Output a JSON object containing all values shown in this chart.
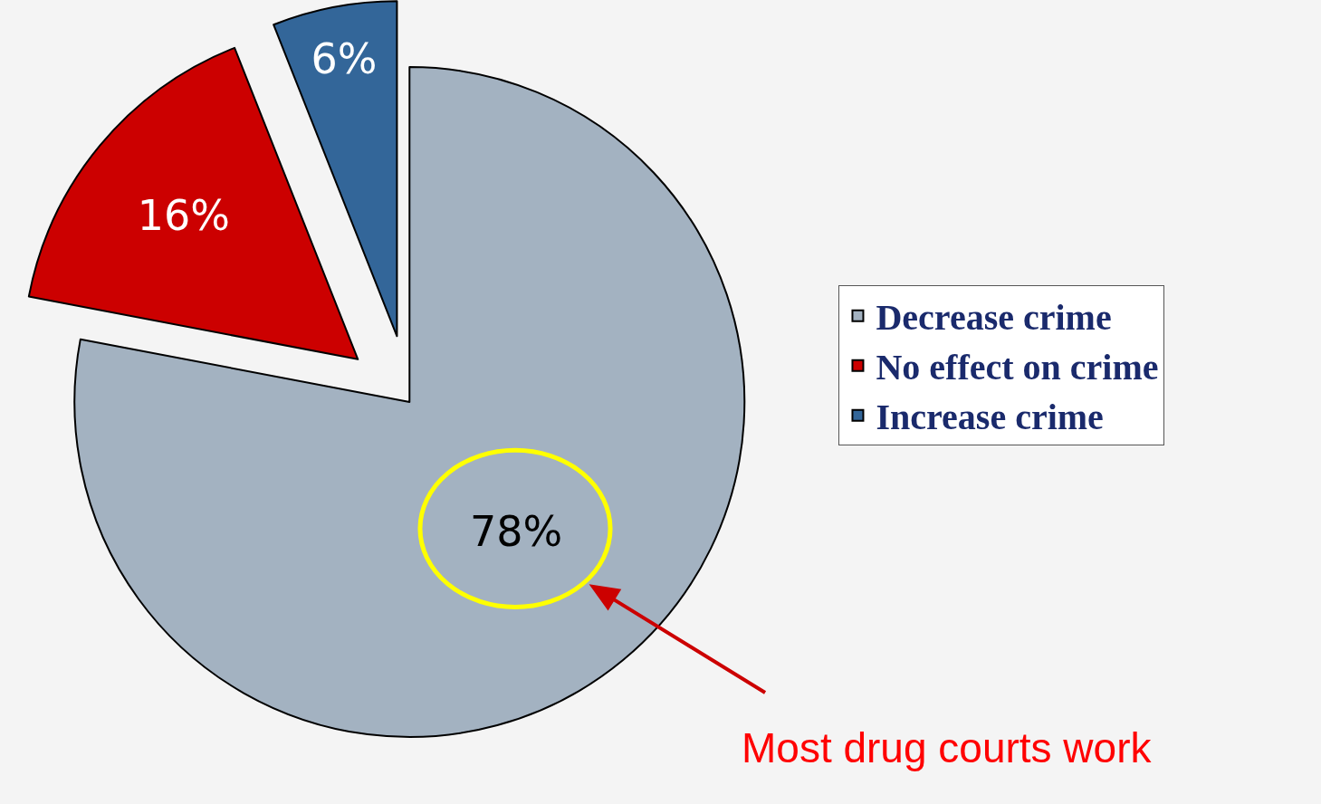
{
  "chart_data": {
    "type": "pie",
    "categories": [
      "Decrease crime",
      "No effect on crime",
      "Increase crime"
    ],
    "values": [
      78,
      16,
      6
    ],
    "value_labels": [
      "78%",
      "16%",
      "6%"
    ],
    "colors": [
      "#a3b2c1",
      "#cc0000",
      "#336699"
    ],
    "legend": "right",
    "annotations": [
      "Most drug courts work"
    ]
  }
}
